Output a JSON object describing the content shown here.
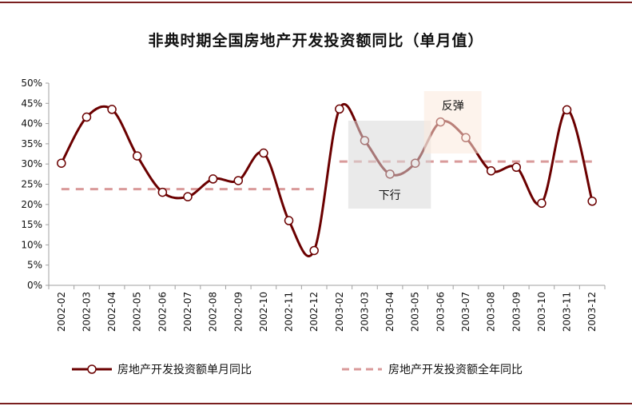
{
  "chart_data": {
    "type": "line",
    "title": "非典时期全国房地产开发投资额同比（单月值）",
    "categories": [
      "2002-02",
      "2002-03",
      "2002-04",
      "2002-05",
      "2002-06",
      "2002-07",
      "2002-08",
      "2002-09",
      "2002-10",
      "2002-11",
      "2002-12",
      "2003-02",
      "2003-03",
      "2003-04",
      "2003-05",
      "2003-06",
      "2003-07",
      "2003-08",
      "2003-09",
      "2003-10",
      "2003-11",
      "2003-12"
    ],
    "series": [
      {
        "name": "房地产开发投资额单月同比",
        "style": "solid-smooth-with-hollow-markers",
        "color": "#6b0000",
        "values": [
          30.2,
          41.6,
          43.5,
          32.0,
          23.0,
          21.9,
          26.3,
          25.9,
          32.7,
          16.0,
          8.6,
          43.6,
          35.8,
          27.5,
          30.2,
          40.4,
          36.5,
          28.3,
          29.2,
          20.3,
          43.4,
          20.8
        ]
      },
      {
        "name": "房地产开发投资额全年同比",
        "style": "dashed",
        "color": "#d99a9a",
        "segments": [
          {
            "from": "2002-02",
            "to": "2002-12",
            "value": 23.8
          },
          {
            "from": "2003-02",
            "to": "2003-12",
            "value": 30.6
          }
        ]
      }
    ],
    "yticks": [
      "0%",
      "5%",
      "10%",
      "15%",
      "20%",
      "25%",
      "30%",
      "35%",
      "40%",
      "45%",
      "50%"
    ],
    "ylim": [
      0,
      50
    ],
    "grid": false,
    "legend": "bottom",
    "annotations": [
      {
        "text": "下行",
        "from": "2003-03",
        "to": "2003-05",
        "color": "#d9d9d9"
      },
      {
        "text": "反弹",
        "from": "2003-06",
        "to": "2003-07",
        "color": "#fbe9dc"
      }
    ]
  }
}
